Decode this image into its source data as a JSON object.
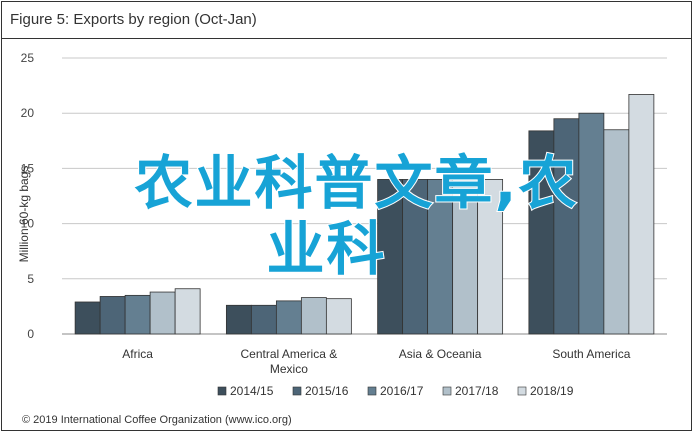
{
  "header": {
    "title": "Figure 5: Exports by region (Oct-Jan)"
  },
  "overlay": {
    "line1": "农业科普文章,农",
    "line2": "业科",
    "color": "#17a3d6"
  },
  "footer": {
    "copyright": "© 2019 International Coffee Organization (www.ico.org)"
  },
  "chart_data": {
    "type": "bar",
    "title": "Figure 5: Exports by region (Oct-Jan)",
    "ylabel": "Million 60-kg bags",
    "xlabel": "",
    "ylim": [
      0,
      25
    ],
    "yticks": [
      0,
      5,
      10,
      15,
      20,
      25
    ],
    "yticks_labels": [
      "0",
      "5",
      "10",
      "15",
      "20",
      "25"
    ],
    "grid": true,
    "legend_position": "bottom",
    "categories": [
      [
        "Africa"
      ],
      [
        "Central America &",
        "Mexico"
      ],
      [
        "Asia & Oceania"
      ],
      [
        "South America"
      ]
    ],
    "series": [
      {
        "name": "2014/15",
        "color": "#3d4f5c",
        "values": [
          2.9,
          2.6,
          14.0,
          18.4
        ]
      },
      {
        "name": "2015/16",
        "color": "#4d6577",
        "values": [
          3.4,
          2.6,
          14.0,
          19.5
        ]
      },
      {
        "name": "2016/17",
        "color": "#647f91",
        "values": [
          3.5,
          3.0,
          14.0,
          20.0
        ]
      },
      {
        "name": "2017/18",
        "color": "#b1c0ca",
        "values": [
          3.8,
          3.3,
          14.0,
          18.5
        ]
      },
      {
        "name": "2018/19",
        "color": "#d3dbe1",
        "values": [
          4.1,
          3.2,
          14.0,
          21.7
        ]
      }
    ]
  }
}
